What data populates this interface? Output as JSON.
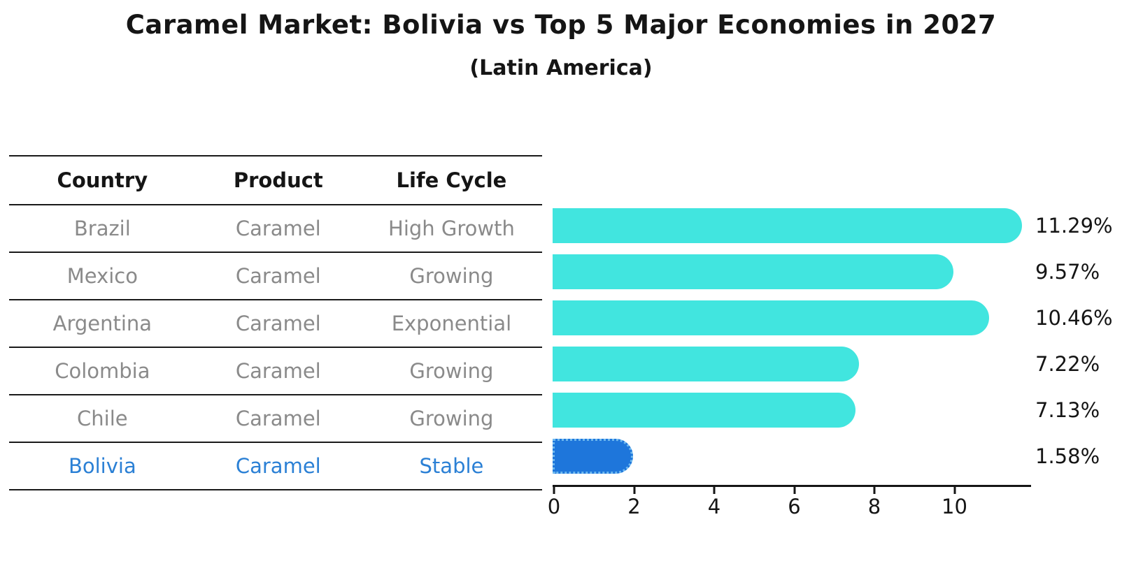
{
  "title": "Caramel Market: Bolivia vs Top 5 Major Economies in 2027",
  "subtitle": "(Latin America)",
  "table": {
    "headers": [
      "Country",
      "Product",
      "Life Cycle"
    ],
    "rows": [
      {
        "country": "Brazil",
        "product": "Caramel",
        "life_cycle": "High Growth"
      },
      {
        "country": "Mexico",
        "product": "Caramel",
        "life_cycle": "Growing"
      },
      {
        "country": "Argentina",
        "product": "Caramel",
        "life_cycle": "Exponential"
      },
      {
        "country": "Colombia",
        "product": "Caramel",
        "life_cycle": "Growing"
      },
      {
        "country": "Chile",
        "product": "Caramel",
        "life_cycle": "Growing"
      },
      {
        "country": "Bolivia",
        "product": "Caramel",
        "life_cycle": "Stable"
      }
    ],
    "highlight_row_index": 5
  },
  "chart_data": {
    "type": "bar",
    "orientation": "horizontal",
    "title": "Caramel Market: Bolivia vs Top 5 Major Economies in 2027 (Latin America)",
    "categories": [
      "Brazil",
      "Mexico",
      "Argentina",
      "Colombia",
      "Chile",
      "Bolivia"
    ],
    "values": [
      11.29,
      9.57,
      10.46,
      7.22,
      7.13,
      1.58
    ],
    "bar_labels": [
      "11.29%",
      "9.57%",
      "10.46%",
      "7.22%",
      "7.13%",
      "1.58%"
    ],
    "x_ticks": [
      0,
      2,
      4,
      6,
      8,
      10
    ],
    "x_tick_labels": [
      "0",
      "2",
      "4",
      "6",
      "8",
      "10"
    ],
    "xlim": [
      0,
      11.9
    ],
    "grid": false,
    "legend": "none",
    "bar_color": "#41e5df",
    "highlight_color": "#1e76db",
    "highlight_border_color": "#6fb9ef",
    "highlight_index": 5,
    "value_label_color": "#151515",
    "axis_color": "#151515"
  },
  "colors": {
    "background": "#ffffff",
    "table_text": "#8a8a8a",
    "table_header_text": "#151515",
    "highlight_text": "#2b80d5",
    "line": "#1a1a1a"
  }
}
